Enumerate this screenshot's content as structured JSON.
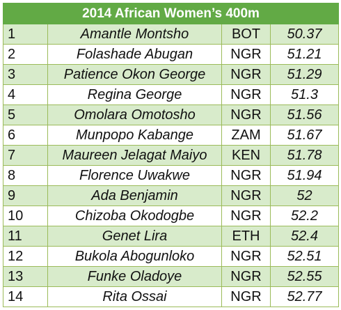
{
  "title": "2014 African Women’s 400m",
  "rows": [
    {
      "rank": "1",
      "name": "Amantle Montsho",
      "nat": "BOT",
      "time": "50.37"
    },
    {
      "rank": "2",
      "name": "Folashade Abugan",
      "nat": "NGR",
      "time": "51.21"
    },
    {
      "rank": "3",
      "name": "Patience Okon George",
      "nat": "NGR",
      "time": "51.29"
    },
    {
      "rank": "4",
      "name": "Regina George",
      "nat": "NGR",
      "time": "51.3"
    },
    {
      "rank": "5",
      "name": "Omolara Omotosho",
      "nat": "NGR",
      "time": "51.56"
    },
    {
      "rank": "6",
      "name": "Munpopo Kabange",
      "nat": "ZAM",
      "time": "51.67"
    },
    {
      "rank": "7",
      "name": "Maureen Jelagat Maiyo",
      "nat": "KEN",
      "time": "51.78"
    },
    {
      "rank": "8",
      "name": "Florence Uwakwe",
      "nat": "NGR",
      "time": "51.94"
    },
    {
      "rank": "9",
      "name": "Ada Benjamin",
      "nat": "NGR",
      "time": "52"
    },
    {
      "rank": "10",
      "name": "Chizoba Okodogbe",
      "nat": "NGR",
      "time": "52.2"
    },
    {
      "rank": "11",
      "name": "Genet Lira",
      "nat": "ETH",
      "time": "52.4"
    },
    {
      "rank": "12",
      "name": "Bukola Abogunloko",
      "nat": "NGR",
      "time": "52.51"
    },
    {
      "rank": "13",
      "name": "Funke Oladoye",
      "nat": "NGR",
      "time": "52.55"
    },
    {
      "rank": "14",
      "name": "Rita Ossai",
      "nat": "NGR",
      "time": "52.77"
    }
  ]
}
